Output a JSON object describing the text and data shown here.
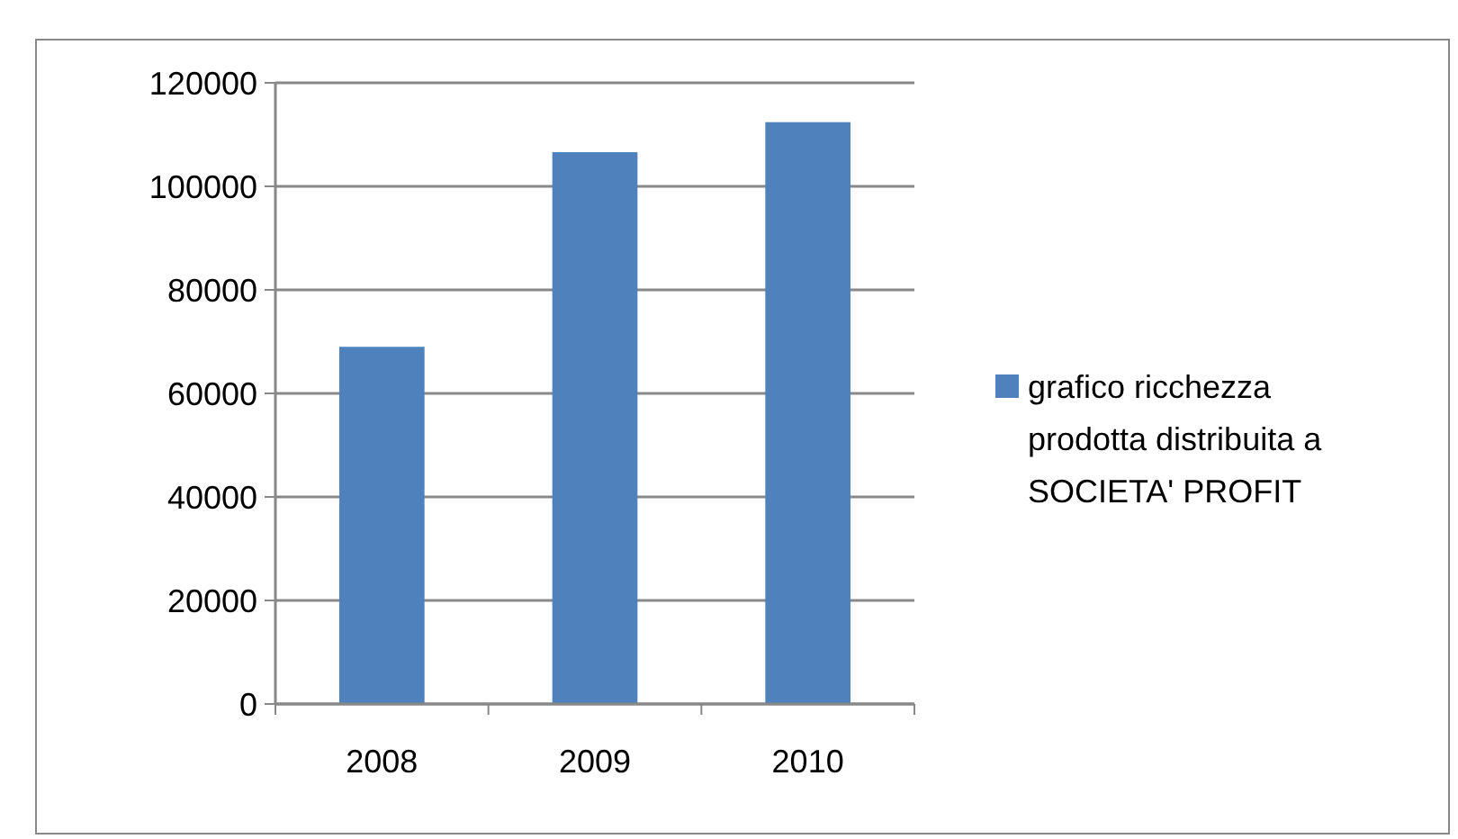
{
  "chart_data": {
    "type": "bar",
    "categories": [
      "2008",
      "2009",
      "2010"
    ],
    "series": [
      {
        "name": "grafico ricchezza prodotta distribuita a SOCIETA' PROFIT",
        "color": "#4f81bd",
        "values": [
          69000,
          106600,
          112400
        ]
      }
    ],
    "ylim": [
      0,
      120000
    ],
    "yticks": [
      0,
      20000,
      40000,
      60000,
      80000,
      100000,
      120000
    ],
    "grid": "y",
    "legend": "right"
  }
}
